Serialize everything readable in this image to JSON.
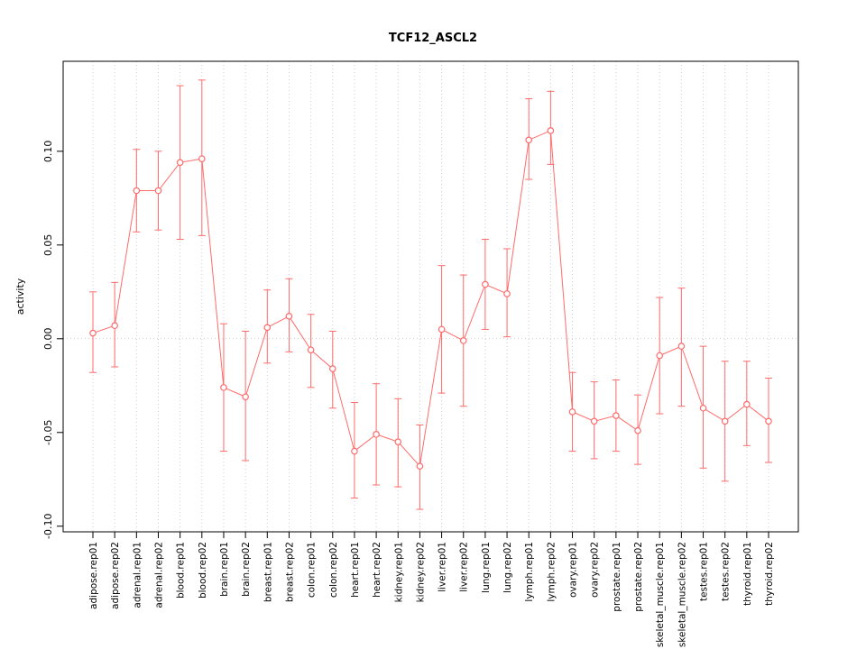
{
  "chart_data": {
    "type": "line",
    "title": "TCF12_ASCL2",
    "ylabel": "activity",
    "xlabel": "",
    "ylim": [
      -0.103,
      0.148
    ],
    "yticks": [
      -0.1,
      -0.05,
      0.0,
      0.05,
      0.1
    ],
    "ytick_labels": [
      "-0.10",
      "-0.05",
      "0.00",
      "0.05",
      "0.10"
    ],
    "zero_line": 0,
    "grid": "dotted-vertical-per-category-and-horizontal-at-zero",
    "legend": "none",
    "point_style": "open-circle-with-error-bars",
    "colors": {
      "series": "#ff6b6b",
      "grid": "#cccccc",
      "axis": "#000000",
      "background": "#ffffff"
    },
    "categories": [
      "adipose.rep01",
      "adipose.rep02",
      "adrenal.rep01",
      "adrenal.rep02",
      "blood.rep01",
      "blood.rep02",
      "brain.rep01",
      "brain.rep02",
      "breast.rep01",
      "breast.rep02",
      "colon.rep01",
      "colon.rep02",
      "heart.rep01",
      "heart.rep02",
      "kidney.rep01",
      "kidney.rep02",
      "liver.rep01",
      "liver.rep02",
      "lung.rep01",
      "lung.rep02",
      "lymph.rep01",
      "lymph.rep02",
      "ovary.rep01",
      "ovary.rep02",
      "prostate.rep01",
      "prostate.rep02",
      "skeletal_muscle.rep01",
      "skeletal_muscle.rep02",
      "testes.rep01",
      "testes.rep02",
      "thyroid.rep01",
      "thyroid.rep02"
    ],
    "series": [
      {
        "name": "activity",
        "values": [
          0.003,
          0.007,
          0.079,
          0.079,
          0.094,
          0.096,
          -0.026,
          -0.031,
          0.006,
          0.012,
          -0.006,
          -0.016,
          -0.06,
          -0.051,
          -0.055,
          -0.068,
          0.005,
          -0.001,
          0.029,
          0.024,
          0.106,
          0.111,
          -0.039,
          -0.044,
          -0.041,
          -0.049,
          -0.009,
          -0.004,
          -0.037,
          -0.044,
          -0.035,
          -0.044
        ],
        "ci_low": [
          -0.018,
          -0.015,
          0.057,
          0.058,
          0.053,
          0.055,
          -0.06,
          -0.065,
          -0.013,
          -0.007,
          -0.026,
          -0.037,
          -0.085,
          -0.078,
          -0.079,
          -0.091,
          -0.029,
          -0.036,
          0.005,
          0.001,
          0.085,
          0.093,
          -0.06,
          -0.064,
          -0.06,
          -0.067,
          -0.04,
          -0.036,
          -0.069,
          -0.076,
          -0.057,
          -0.066
        ],
        "ci_high": [
          0.025,
          0.03,
          0.101,
          0.1,
          0.135,
          0.138,
          0.008,
          0.004,
          0.026,
          0.032,
          0.013,
          0.004,
          -0.034,
          -0.024,
          -0.032,
          -0.046,
          0.039,
          0.034,
          0.053,
          0.048,
          0.128,
          0.132,
          -0.018,
          -0.023,
          -0.022,
          -0.03,
          0.022,
          0.027,
          -0.004,
          -0.012,
          -0.012,
          -0.021
        ]
      }
    ]
  }
}
